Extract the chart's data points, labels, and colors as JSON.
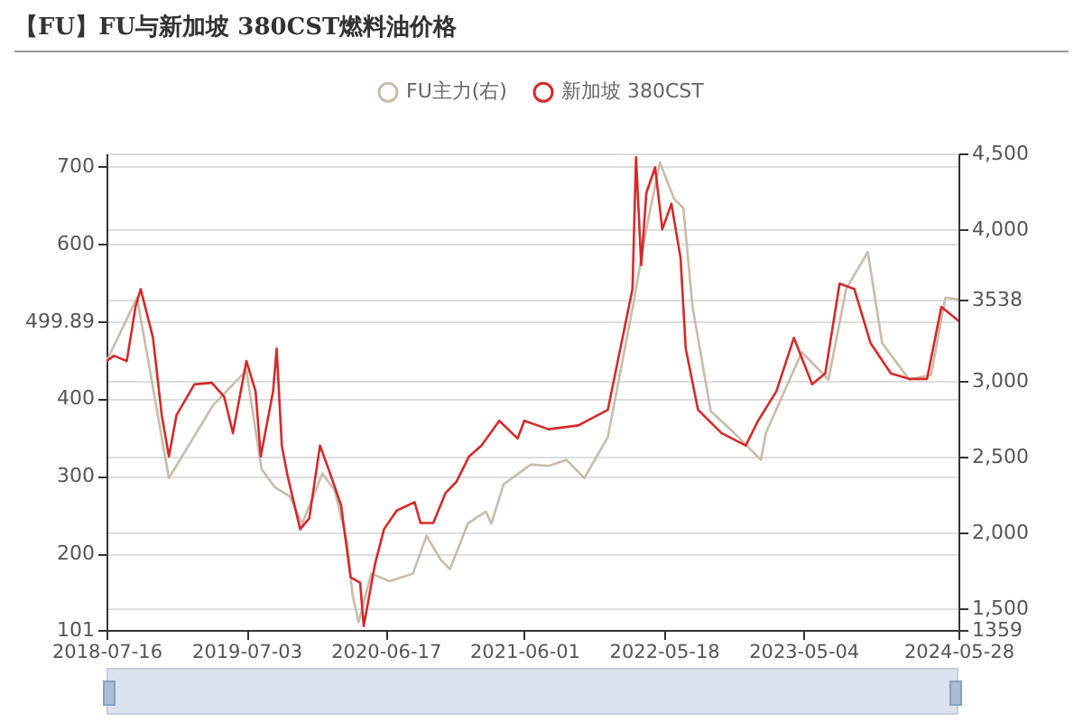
{
  "chart_data": {
    "type": "line",
    "title": "【FU】FU与新加坡 380CST燃料油价格",
    "xlim": [
      "2018-07-16",
      "2024-05-28"
    ],
    "xticks": [
      "2018-07-16",
      "2019-07-03",
      "2020-06-17",
      "2021-06-01",
      "2022-05-18",
      "2023-05-04",
      "2024-05-28"
    ],
    "ylim": [
      101,
      716
    ],
    "yticks": [
      101,
      200,
      300,
      400,
      {
        "value": 499.89,
        "label": "499.89"
      },
      600,
      700
    ],
    "y2lim": [
      1359,
      4500
    ],
    "y2ticks": [
      1359,
      {
        "value": 1500,
        "label": "1,500"
      },
      {
        "value": 2000,
        "label": "2,000"
      },
      {
        "value": 2500,
        "label": "2,500"
      },
      {
        "value": 3000,
        "label": "3,000"
      },
      3538,
      {
        "value": 4000,
        "label": "4,000"
      },
      {
        "value": 4500,
        "label": "4,500"
      }
    ],
    "grid": "y",
    "legend": "top",
    "series": [
      {
        "name": "FU主力(右)",
        "color": "#c9bcaa",
        "axis": "y2",
        "x": [
          "2018-07-16",
          "2018-10-01",
          "2018-12-20",
          "2019-04-10",
          "2019-07-03",
          "2019-08-10",
          "2019-09-12",
          "2019-10-20",
          "2019-11-20",
          "2020-01-10",
          "2020-02-10",
          "2020-03-12",
          "2020-03-26",
          "2020-04-10",
          "2020-05-12",
          "2020-06-27",
          "2020-08-25",
          "2020-09-28",
          "2020-11-03",
          "2020-11-26",
          "2021-01-10",
          "2021-02-24",
          "2021-03-10",
          "2021-04-10",
          "2021-06-18",
          "2021-08-01",
          "2021-09-15",
          "2021-10-30",
          "2021-12-28",
          "2022-03-01",
          "2022-04-06",
          "2022-05-08",
          "2022-06-13",
          "2022-07-06",
          "2022-07-29",
          "2022-09-13",
          "2022-11-10",
          "2023-01-17",
          "2023-01-30",
          "2023-04-30",
          "2023-07-06",
          "2023-08-20",
          "2023-10-13",
          "2023-11-18",
          "2024-01-25",
          "2024-03-20",
          "2024-04-25",
          "2024-05-28"
        ],
        "values": [
          3130,
          3550,
          2360,
          2840,
          3070,
          2420,
          2300,
          2240,
          2060,
          2390,
          2280,
          1940,
          1590,
          1410,
          1730,
          1680,
          1730,
          1980,
          1820,
          1760,
          2060,
          2140,
          2060,
          2320,
          2450,
          2440,
          2480,
          2360,
          2630,
          3490,
          4030,
          4440,
          4200,
          4140,
          3490,
          2800,
          2660,
          2480,
          2660,
          3190,
          3010,
          3610,
          3850,
          3250,
          3010,
          3040,
          3550,
          3538
        ]
      },
      {
        "name": "新加坡 380CST",
        "color": "#d42a2a",
        "x": [
          "2018-07-16",
          "2018-08-04",
          "2018-09-05",
          "2018-09-27",
          "2018-10-10",
          "2018-11-10",
          "2018-12-02",
          "2018-12-20",
          "2019-01-08",
          "2019-02-22",
          "2019-04-07",
          "2019-05-08",
          "2019-05-30",
          "2019-07-03",
          "2019-07-26",
          "2019-08-08",
          "2019-09-08",
          "2019-09-17",
          "2019-09-30",
          "2019-10-14",
          "2019-11-15",
          "2019-12-08",
          "2020-01-04",
          "2020-01-26",
          "2020-02-26",
          "2020-03-21",
          "2020-04-14",
          "2020-04-23",
          "2020-05-21",
          "2020-06-13",
          "2020-07-15",
          "2020-08-29",
          "2020-09-13",
          "2020-10-15",
          "2020-11-15",
          "2020-12-12",
          "2021-01-13",
          "2021-02-13",
          "2021-03-30",
          "2021-05-15",
          "2021-06-01",
          "2021-08-01",
          "2021-10-15",
          "2021-12-28",
          "2022-02-28",
          "2022-03-09",
          "2022-03-22",
          "2022-04-04",
          "2022-04-26",
          "2022-05-14",
          "2022-06-06",
          "2022-06-29",
          "2022-07-12",
          "2022-08-12",
          "2022-10-10",
          "2022-12-10",
          "2023-01-10",
          "2023-02-25",
          "2023-04-10",
          "2023-05-26",
          "2023-06-28",
          "2023-08-03",
          "2023-09-09",
          "2023-10-20",
          "2023-12-10",
          "2024-01-25",
          "2024-03-10",
          "2024-04-15",
          "2024-05-28"
        ],
        "values": [
          448,
          455,
          448,
          518,
          541,
          478,
          378,
          325,
          378,
          418,
          420,
          402,
          355,
          448,
          409,
          325,
          409,
          464,
          339,
          301,
          231,
          245,
          339,
          308,
          262,
          169,
          162,
          106,
          185,
          231,
          255,
          266,
          239,
          239,
          278,
          292,
          325,
          339,
          371,
          348,
          371,
          360,
          365,
          385,
          541,
          711,
          572,
          665,
          698,
          618,
          651,
          581,
          464,
          385,
          355,
          339,
          371,
          409,
          478,
          418,
          432,
          548,
          541,
          471,
          432,
          425,
          425,
          518,
          499.89
        ]
      }
    ]
  }
}
